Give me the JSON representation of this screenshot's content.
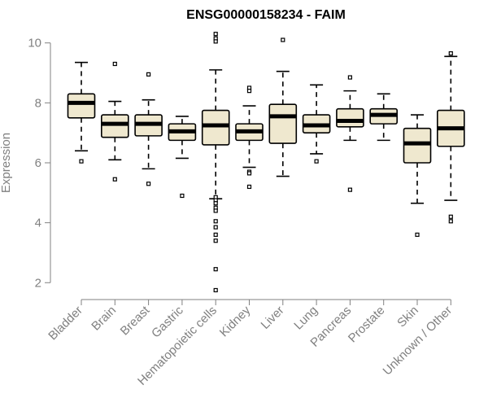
{
  "chart_data": {
    "type": "boxplot",
    "title": "ENSG00000158234 - FAIM",
    "xlabel": "",
    "ylabel": "Expression",
    "ylim": [
      1.6,
      10.4
    ],
    "yticks": [
      2,
      4,
      6,
      8,
      10
    ],
    "categories": [
      "Bladder",
      "Brain",
      "Breast",
      "Gastric",
      "Hematopoietic cells",
      "Kidney",
      "Liver",
      "Lung",
      "Pancreas",
      "Prostate",
      "Skin",
      "Unknown / Other"
    ],
    "boxes": [
      {
        "label": "Bladder",
        "whisker_low": 6.4,
        "q1": 7.5,
        "median": 8.0,
        "q3": 8.3,
        "whisker_high": 9.35,
        "outliers": [
          6.05
        ]
      },
      {
        "label": "Brain",
        "whisker_low": 6.1,
        "q1": 6.85,
        "median": 7.3,
        "q3": 7.6,
        "whisker_high": 8.05,
        "outliers": [
          5.45,
          9.3
        ]
      },
      {
        "label": "Breast",
        "whisker_low": 5.8,
        "q1": 6.9,
        "median": 7.3,
        "q3": 7.6,
        "whisker_high": 8.1,
        "outliers": [
          5.3,
          8.95
        ]
      },
      {
        "label": "Gastric",
        "whisker_low": 6.15,
        "q1": 6.75,
        "median": 7.05,
        "q3": 7.3,
        "whisker_high": 7.55,
        "outliers": [
          4.9
        ]
      },
      {
        "label": "Hematopoietic cells",
        "whisker_low": 4.8,
        "q1": 6.6,
        "median": 7.25,
        "q3": 7.75,
        "whisker_high": 9.1,
        "outliers": [
          10.3,
          10.15,
          10.05,
          4.85,
          4.75,
          4.65,
          4.5,
          4.4,
          4.05,
          3.85,
          3.6,
          3.4,
          2.45,
          1.75
        ]
      },
      {
        "label": "Kidney",
        "whisker_low": 5.85,
        "q1": 6.75,
        "median": 7.05,
        "q3": 7.3,
        "whisker_high": 7.9,
        "outliers": [
          8.5,
          8.4,
          5.7,
          5.65,
          5.2
        ]
      },
      {
        "label": "Liver",
        "whisker_low": 5.55,
        "q1": 6.65,
        "median": 7.55,
        "q3": 7.95,
        "whisker_high": 9.05,
        "outliers": [
          10.1
        ]
      },
      {
        "label": "Lung",
        "whisker_low": 6.3,
        "q1": 7.0,
        "median": 7.25,
        "q3": 7.6,
        "whisker_high": 8.6,
        "outliers": [
          6.05
        ]
      },
      {
        "label": "Pancreas",
        "whisker_low": 6.75,
        "q1": 7.2,
        "median": 7.4,
        "q3": 7.8,
        "whisker_high": 8.4,
        "outliers": [
          8.85,
          5.1
        ]
      },
      {
        "label": "Prostate",
        "whisker_low": 6.75,
        "q1": 7.3,
        "median": 7.6,
        "q3": 7.8,
        "whisker_high": 8.3,
        "outliers": []
      },
      {
        "label": "Skin",
        "whisker_low": 4.65,
        "q1": 6.0,
        "median": 6.65,
        "q3": 7.15,
        "whisker_high": 7.6,
        "outliers": [
          3.6
        ]
      },
      {
        "label": "Unknown / Other",
        "whisker_low": 4.75,
        "q1": 6.55,
        "median": 7.15,
        "q3": 7.75,
        "whisker_high": 9.55,
        "outliers": [
          9.65,
          4.2,
          4.05
        ]
      }
    ]
  }
}
